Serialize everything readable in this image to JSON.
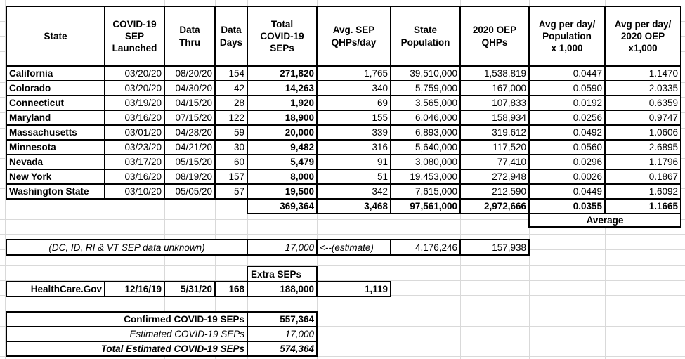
{
  "colors": {
    "border": "#000000",
    "gridline": "#d9d9d9",
    "background": "#ffffff",
    "text": "#000000"
  },
  "table": {
    "headers": [
      "State",
      "COVID-19\nSEP\nLaunched",
      "Data\nThru",
      "Data\nDays",
      "Total\nCOVID-19\nSEPs",
      "Avg. SEP\nQHPs/day",
      "State\nPopulation",
      "2020 OEP\nQHPs",
      "Avg per day/\nPopulation\nx 1,000",
      "Avg per day/\n2020 OEP\nx1,000"
    ],
    "rows": [
      [
        "California",
        "03/20/20",
        "08/20/20",
        "154",
        "271,820",
        "1,765",
        "39,510,000",
        "1,538,819",
        "0.0447",
        "1.1470"
      ],
      [
        "Colorado",
        "03/20/20",
        "04/30/20",
        "42",
        "14,263",
        "340",
        "5,759,000",
        "167,000",
        "0.0590",
        "2.0335"
      ],
      [
        "Connecticut",
        "03/19/20",
        "04/15/20",
        "28",
        "1,920",
        "69",
        "3,565,000",
        "107,833",
        "0.0192",
        "0.6359"
      ],
      [
        "Maryland",
        "03/16/20",
        "07/15/20",
        "122",
        "18,900",
        "155",
        "6,046,000",
        "158,934",
        "0.0256",
        "0.9747"
      ],
      [
        "Massachusetts",
        "03/01/20",
        "04/28/20",
        "59",
        "20,000",
        "339",
        "6,893,000",
        "319,612",
        "0.0492",
        "1.0606"
      ],
      [
        "Minnesota",
        "03/23/20",
        "04/21/20",
        "30",
        "9,482",
        "316",
        "5,640,000",
        "117,520",
        "0.0560",
        "2.6895"
      ],
      [
        "Nevada",
        "03/17/20",
        "05/15/20",
        "60",
        "5,479",
        "91",
        "3,080,000",
        "77,410",
        "0.0296",
        "1.1796"
      ],
      [
        "New York",
        "03/16/20",
        "08/19/20",
        "157",
        "8,000",
        "51",
        "19,453,000",
        "272,948",
        "0.0026",
        "0.1867"
      ],
      [
        "Washington State",
        "03/10/20",
        "05/05/20",
        "57",
        "19,500",
        "342",
        "7,615,000",
        "212,590",
        "0.0449",
        "1.6092"
      ]
    ],
    "totals": [
      "369,364",
      "3,468",
      "97,561,000",
      "2,972,666",
      "0.0355",
      "1.1665"
    ],
    "average_label": "Average"
  },
  "unknown_row": {
    "label": "(DC, ID, RI & VT SEP data unknown)",
    "total_seps": "17,000",
    "note": "<--(estimate)",
    "state_population": "4,176,246",
    "oep_qhps": "157,938"
  },
  "extra": {
    "header": "Extra SEPs",
    "row": [
      "HealthCare.Gov",
      "12/16/19",
      "5/31/20",
      "168",
      "188,000",
      "1,119"
    ]
  },
  "summary": [
    {
      "label": "Confirmed COVID-19 SEPs",
      "value": "557,364",
      "style": "bold"
    },
    {
      "label": "Estimated COVID-19 SEPs",
      "value": "17,000",
      "style": "italic"
    },
    {
      "label": "Total Estimated COVID-19 SEPs",
      "value": "574,364",
      "style": "bold-italic"
    }
  ]
}
